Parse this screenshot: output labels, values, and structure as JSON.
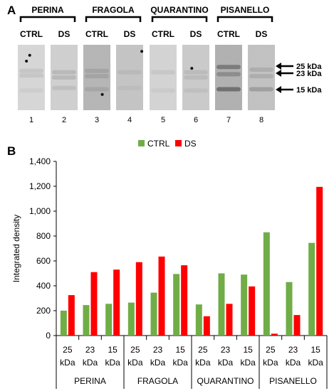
{
  "panel_a": {
    "label": "A",
    "cultivars": [
      "PERINA",
      "FRAGOLA",
      "QUARANTINO",
      "PISANELLO"
    ],
    "lane_labels": [
      "CTRL",
      "DS",
      "CTRL",
      "DS",
      "CTRL",
      "DS",
      "CTRL",
      "DS"
    ],
    "lane_numbers": [
      "1",
      "2",
      "3",
      "4",
      "5",
      "6",
      "7",
      "8"
    ],
    "markers": [
      "25 kDa",
      "23 kDa",
      "15 kDa"
    ],
    "colors": {
      "arrow": "#000000",
      "blot_bg": "#d4d4d4",
      "band": "#5a5a5a"
    }
  },
  "panel_b": {
    "label": "B"
  },
  "chart_data": {
    "type": "bar",
    "title": "",
    "xlabel": "",
    "ylabel": "Integrated density",
    "ylim": [
      0,
      1400
    ],
    "yticks": [
      "0",
      "200",
      "400",
      "600",
      "800",
      "1,000",
      "1,200",
      "1,400"
    ],
    "ytick_values": [
      0,
      200,
      400,
      600,
      800,
      1000,
      1200,
      1400
    ],
    "grid": false,
    "legend_position": "top-center",
    "groups": [
      "PERINA",
      "FRAGOLA",
      "QUARANTINO",
      "PISANELLO"
    ],
    "categories": [
      [
        "25",
        "kDa"
      ],
      [
        "23",
        "kDa"
      ],
      [
        "15",
        "kDa"
      ],
      [
        "25",
        "kDa"
      ],
      [
        "23",
        "kDa"
      ],
      [
        "15",
        "kDa"
      ],
      [
        "25",
        "kDa"
      ],
      [
        "23",
        "kDa"
      ],
      [
        "15",
        "kDa"
      ],
      [
        "25",
        "kDa"
      ],
      [
        "23",
        "kDa"
      ],
      [
        "15",
        "kDa"
      ]
    ],
    "series": [
      {
        "name": "CTRL",
        "color": "#70ad47",
        "values": [
          200,
          245,
          255,
          265,
          345,
          495,
          250,
          500,
          490,
          830,
          430,
          745
        ]
      },
      {
        "name": "DS",
        "color": "#ff0000",
        "values": [
          325,
          510,
          530,
          590,
          635,
          565,
          155,
          255,
          395,
          15,
          165,
          1195
        ]
      }
    ]
  }
}
